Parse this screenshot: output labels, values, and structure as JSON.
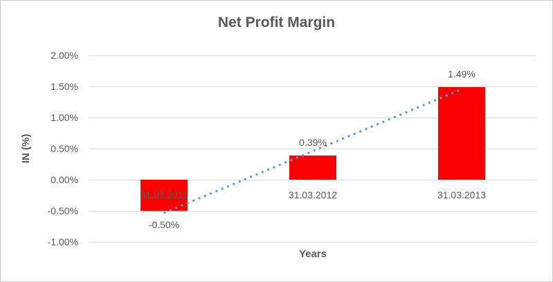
{
  "chart_data": {
    "type": "bar",
    "title": "Net Profit Margin",
    "xlabel": "Years",
    "ylabel": "IN (%)",
    "categories": [
      "31.03.2011",
      "31.03.2012",
      "31.03.2013"
    ],
    "series": [
      {
        "name": "Net Profit Margin",
        "values": [
          -0.5,
          0.39,
          1.49
        ]
      }
    ],
    "data_labels": [
      "-0.50%",
      "0.39%",
      "1.49%"
    ],
    "y_ticks": [
      {
        "label": "2.00%",
        "value": 2.0
      },
      {
        "label": "1.50%",
        "value": 1.5
      },
      {
        "label": "1.00%",
        "value": 1.0
      },
      {
        "label": "0.50%",
        "value": 0.5
      },
      {
        "label": "0.00%",
        "value": 0.0
      },
      {
        "label": "-0.50%",
        "value": -0.5
      },
      {
        "label": "-1.00%",
        "value": -1.0
      }
    ],
    "ylim": [
      -1.0,
      2.0
    ],
    "grid": true,
    "legend": "none",
    "bar_color": "#ff0000",
    "text_color": "#595959",
    "gridline_color": "#d9d9d9",
    "trendline": {
      "style": "dotted",
      "color": "#5b9bd5",
      "start_value": -0.535,
      "end_value": 1.455
    }
  }
}
